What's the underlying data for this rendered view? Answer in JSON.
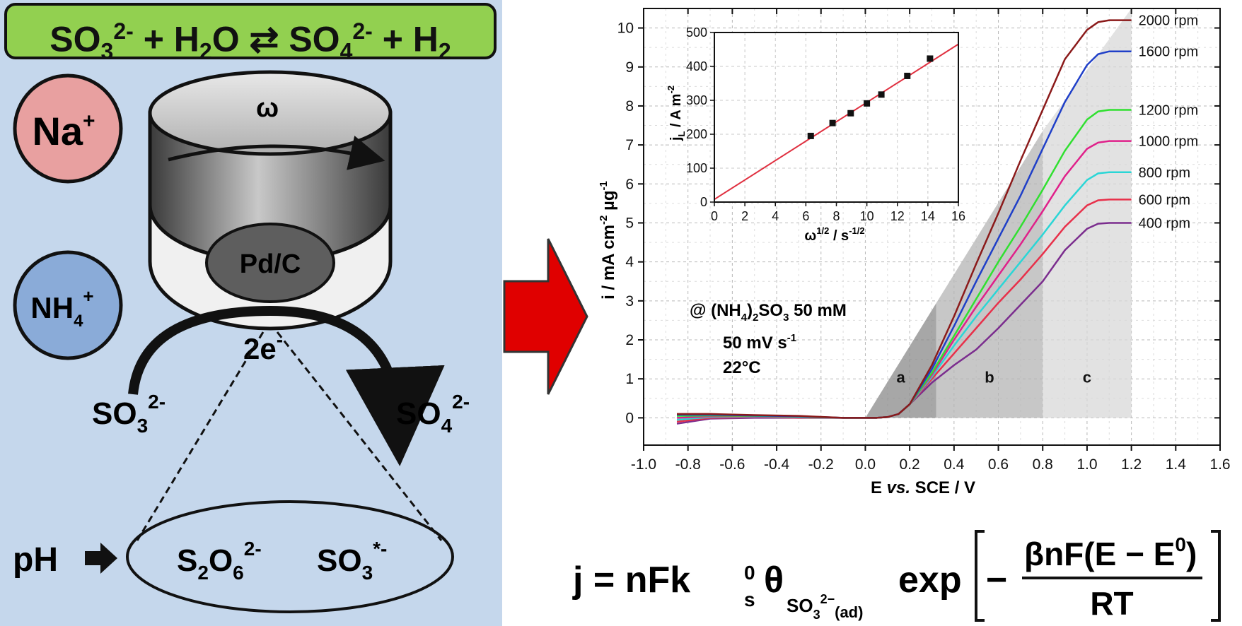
{
  "reaction": {
    "reactant1": "SO",
    "r1_sub": "3",
    "r1_sup": "2-",
    "plus1": " + H",
    "h2o_sub": "2",
    "h2o_tail": "O",
    "arrow": "⇄",
    "product1": "SO",
    "p1_sub": "4",
    "p1_sup": "2-",
    "plus2": " + H",
    "h2_sub": "2"
  },
  "schematic": {
    "omega": "ω",
    "electrode": "Pd/C",
    "electrons": "2e",
    "electrons_sup": "-",
    "cation1": "Na",
    "cation1_sup": "+",
    "cation2": "NH",
    "cation2_sub": "4",
    "cation2_sup": "+",
    "reactant": "SO",
    "reactant_sub": "3",
    "reactant_sup": "2-",
    "product": "SO",
    "product_sub": "4",
    "product_sup": "2-",
    "ph": "pH",
    "int1": "S",
    "int1_sub1": "2",
    "int1_mid": "O",
    "int1_sub2": "6",
    "int1_sup": "2-",
    "int2": "SO",
    "int2_sub": "3",
    "int2_sup": "*-",
    "colors": {
      "panel": "#c5d7ec",
      "reaction_box": "#92d050",
      "na": "#e8a0a0",
      "nh4": "#8aabd8",
      "arrow": "#e00000"
    }
  },
  "chart_data": [
    {
      "type": "line",
      "xlabel_pre": "E ",
      "xlabel_em": "vs.",
      "xlabel_post": " SCE / V",
      "ylabel_main": "i / mA cm",
      "ylabel_sup1": "-2",
      "ylabel_mid": " µg",
      "ylabel_sup2": "-1",
      "xlim": [
        -1.0,
        1.6
      ],
      "ylim": [
        -0.7,
        10.5
      ],
      "xticks": [
        -1.0,
        -0.8,
        -0.6,
        -0.4,
        -0.2,
        0.0,
        0.2,
        0.4,
        0.6,
        0.8,
        1.0,
        1.2,
        1.4,
        1.6
      ],
      "xtick_labels": [
        "-1.0",
        "-0.8",
        "-0.6",
        "-0.4",
        "-0.2",
        "0.0",
        "0.2",
        "0.4",
        "0.6",
        "0.8",
        "1.0",
        "1.2",
        "1.4",
        "1.6"
      ],
      "yticks": [
        0,
        1,
        2,
        3,
        4,
        5,
        6,
        7,
        8,
        9,
        10
      ],
      "ytick_labels": [
        "0",
        "1",
        "2",
        "3",
        "4",
        "5",
        "6",
        "7",
        "8",
        "9",
        "10"
      ],
      "grid": true,
      "regions": [
        {
          "label": "a",
          "x_start": 0.0,
          "x_end": 0.32,
          "label_x": 0.16,
          "label_y": 0.9
        },
        {
          "label": "b",
          "x_start": 0.32,
          "x_end": 0.8,
          "label_x": 0.56,
          "label_y": 0.9
        },
        {
          "label": "c",
          "x_start": 0.8,
          "x_end": 1.2,
          "label_x": 1.0,
          "label_y": 0.9
        }
      ],
      "annotations": {
        "conc_pre": "@ (NH",
        "conc_sub1": "4",
        "conc_mid": ")",
        "conc_sub2": "2",
        "conc_tail": "SO",
        "conc_sub3": "3",
        "conc_end": " 50 mM",
        "scan": "50 mV s",
        "scan_sup": "-1",
        "temp": "22°C"
      },
      "x": [
        -0.85,
        -0.7,
        -0.5,
        -0.3,
        -0.1,
        0.05,
        0.1,
        0.15,
        0.2,
        0.3,
        0.4,
        0.5,
        0.6,
        0.7,
        0.8,
        0.9,
        1.0,
        1.05,
        1.1,
        1.2
      ],
      "series": [
        {
          "name": "400 rpm",
          "color": "#7b2d8e",
          "label_value": 5.0,
          "values": [
            -0.15,
            -0.02,
            0.0,
            0.0,
            0.0,
            0.0,
            0.02,
            0.1,
            0.35,
            0.9,
            1.35,
            1.75,
            2.3,
            2.9,
            3.5,
            4.3,
            4.85,
            4.98,
            5.0,
            5.0
          ]
        },
        {
          "name": "600 rpm",
          "color": "#e8304a",
          "label_value": 5.6,
          "values": [
            -0.1,
            0.0,
            0.02,
            0.0,
            0.0,
            0.0,
            0.02,
            0.1,
            0.35,
            1.0,
            1.65,
            2.3,
            2.95,
            3.55,
            4.2,
            4.9,
            5.45,
            5.58,
            5.6,
            5.6
          ]
        },
        {
          "name": "800 rpm",
          "color": "#2ad6d6",
          "label_value": 6.3,
          "values": [
            -0.05,
            0.02,
            0.03,
            0.01,
            0.0,
            0.0,
            0.02,
            0.1,
            0.35,
            1.05,
            1.85,
            2.6,
            3.3,
            4.0,
            4.7,
            5.45,
            6.1,
            6.27,
            6.3,
            6.3
          ]
        },
        {
          "name": "1000 rpm",
          "color": "#e0208a",
          "label_value": 7.1,
          "values": [
            0.0,
            0.04,
            0.04,
            0.02,
            0.0,
            0.0,
            0.02,
            0.1,
            0.35,
            1.1,
            2.0,
            2.85,
            3.65,
            4.45,
            5.3,
            6.2,
            6.9,
            7.06,
            7.1,
            7.1
          ]
        },
        {
          "name": "1200 rpm",
          "color": "#30e030",
          "label_value": 7.9,
          "values": [
            0.05,
            0.06,
            0.05,
            0.03,
            0.0,
            0.0,
            0.02,
            0.1,
            0.35,
            1.15,
            2.1,
            3.05,
            4.0,
            4.9,
            5.85,
            6.85,
            7.65,
            7.86,
            7.9,
            7.9
          ]
        },
        {
          "name": "1600 rpm",
          "color": "#1f3fc8",
          "label_value": 9.4,
          "values": [
            0.08,
            0.08,
            0.06,
            0.04,
            0.0,
            0.0,
            0.02,
            0.1,
            0.35,
            1.25,
            2.35,
            3.5,
            4.6,
            5.7,
            6.9,
            8.1,
            9.05,
            9.33,
            9.4,
            9.4
          ]
        },
        {
          "name": "2000 rpm",
          "color": "#8b1a1a",
          "label_value": 10.2,
          "values": [
            0.1,
            0.1,
            0.07,
            0.05,
            0.0,
            0.0,
            0.02,
            0.1,
            0.35,
            1.35,
            2.6,
            3.95,
            5.25,
            6.6,
            7.9,
            9.2,
            9.95,
            10.15,
            10.2,
            10.2
          ]
        }
      ]
    },
    {
      "type": "scatter",
      "xlabel_pre": "ω",
      "xlabel_sup1": "1/2",
      "xlabel_mid": " / s",
      "xlabel_sup2": "-1/2",
      "ylabel_pre": "j",
      "ylabel_sub": "L",
      "ylabel_post": " / A m",
      "ylabel_sup": "-2",
      "xlim": [
        0,
        16
      ],
      "ylim": [
        0,
        500
      ],
      "xticks": [
        0,
        2,
        4,
        6,
        8,
        10,
        12,
        14,
        16
      ],
      "xtick_labels": [
        "0",
        "2",
        "4",
        "6",
        "8",
        "10",
        "12",
        "14",
        "16"
      ],
      "yticks": [
        0,
        100,
        200,
        300,
        400,
        500
      ],
      "ytick_labels": [
        "0",
        "100",
        "200",
        "300",
        "400",
        "500"
      ],
      "grid": true,
      "x": [
        6.32,
        7.75,
        8.94,
        10.0,
        10.95,
        12.65,
        14.14
      ],
      "y": [
        195,
        233,
        262,
        291,
        317,
        372,
        423
      ],
      "fit": {
        "slope": 28.6,
        "intercept": 8,
        "color": "#e03040"
      }
    }
  ],
  "equation": {
    "lhs": "j = nFk",
    "k_sub": "s",
    "k_sup": "0",
    "theta": "θ",
    "theta_sub": "SO",
    "theta_sub_sub": "3",
    "theta_sub_sup": "2−",
    "theta_sub_tail": "(ad)",
    "exp": "exp",
    "minus": "−",
    "numerator_pre": "βnF",
    "numerator_paren": "E − E",
    "numerator_sup": "0",
    "denominator": "RT"
  }
}
